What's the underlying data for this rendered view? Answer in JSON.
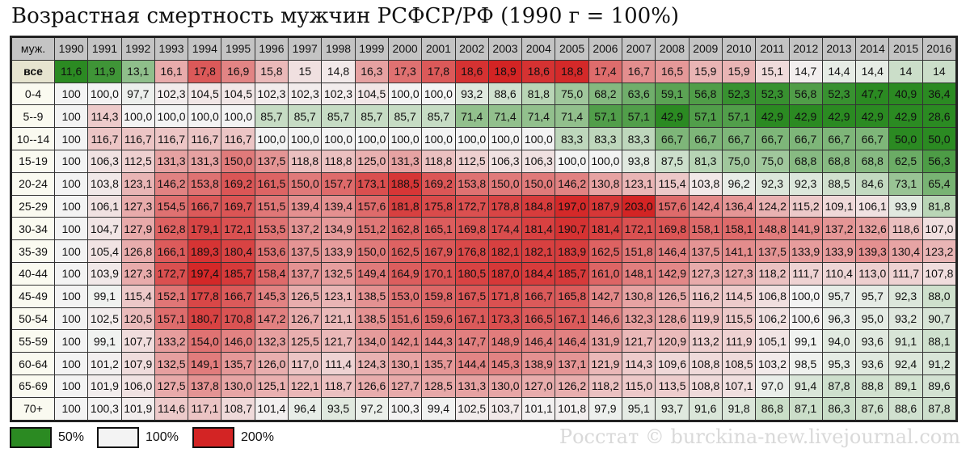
{
  "title": "Возрастная смертность мужчин РСФСР/РФ (1990 г = 100%)",
  "credit": "Росстат © burckina-new.livejournal.com",
  "legend": [
    {
      "label": "50%",
      "color": "#2b8a22"
    },
    {
      "label": "100%",
      "color": "#f3f3f3"
    },
    {
      "label": "200%",
      "color": "#d32424"
    }
  ],
  "chart_data": {
    "type": "heatmap",
    "title": "Возрастная смертность мужчин РСФСР/РФ (1990 г = 100%)",
    "corner_label": "муж.",
    "x": [
      "1990",
      "1991",
      "1992",
      "1993",
      "1994",
      "1995",
      "1996",
      "1997",
      "1998",
      "1999",
      "2000",
      "2001",
      "2002",
      "2003",
      "2004",
      "2005",
      "2006",
      "2007",
      "2008",
      "2009",
      "2010",
      "2011",
      "2012",
      "2013",
      "2014",
      "2015",
      "2016"
    ],
    "rows": [
      {
        "label": "все",
        "values": [
          "11,6",
          "11,9",
          "13,1",
          "16,1",
          "17,8",
          "16,9",
          "15,8",
          "15",
          "14,8",
          "16,3",
          "17,3",
          "17,8",
          "18,6",
          "18,9",
          "18,6",
          "18,8",
          "17,4",
          "16,7",
          "16,5",
          "15,9",
          "15,9",
          "15,1",
          "14,7",
          "14,4",
          "14,4",
          "14",
          "14"
        ]
      },
      {
        "label": "0-4",
        "values": [
          "100",
          "100,0",
          "97,7",
          "102,3",
          "104,5",
          "104,5",
          "102,3",
          "102,3",
          "102,3",
          "104,5",
          "100,0",
          "100,0",
          "93,2",
          "88,6",
          "81,8",
          "75,0",
          "68,2",
          "63,6",
          "59,1",
          "56,8",
          "52,3",
          "52,3",
          "56,8",
          "52,3",
          "47,7",
          "40,9",
          "36,4"
        ]
      },
      {
        "label": "5--9",
        "values": [
          "100",
          "114,3",
          "100,0",
          "100,0",
          "100,0",
          "100,0",
          "85,7",
          "85,7",
          "85,7",
          "85,7",
          "85,7",
          "85,7",
          "71,4",
          "71,4",
          "71,4",
          "71,4",
          "57,1",
          "57,1",
          "42,9",
          "57,1",
          "57,1",
          "42,9",
          "42,9",
          "42,9",
          "42,9",
          "42,9",
          "28,6"
        ]
      },
      {
        "label": "10--14",
        "values": [
          "100",
          "116,7",
          "116,7",
          "116,7",
          "116,7",
          "116,7",
          "100,0",
          "100,0",
          "100,0",
          "100,0",
          "100,0",
          "100,0",
          "100,0",
          "100,0",
          "100,0",
          "83,3",
          "83,3",
          "83,3",
          "66,7",
          "66,7",
          "66,7",
          "66,7",
          "66,7",
          "66,7",
          "66,7",
          "50,0",
          "50,0"
        ]
      },
      {
        "label": "15-19",
        "values": [
          "100",
          "106,3",
          "112,5",
          "131,3",
          "131,3",
          "150,0",
          "137,5",
          "118,8",
          "118,8",
          "125,0",
          "131,3",
          "118,8",
          "112,5",
          "106,3",
          "106,3",
          "100,0",
          "100,0",
          "93,8",
          "87,5",
          "81,3",
          "75,0",
          "75,0",
          "68,8",
          "68,8",
          "68,8",
          "62,5",
          "56,3"
        ]
      },
      {
        "label": "20-24",
        "values": [
          "100",
          "103,8",
          "123,1",
          "146,2",
          "153,8",
          "169,2",
          "161,5",
          "150,0",
          "157,7",
          "173,1",
          "188,5",
          "169,2",
          "153,8",
          "150,0",
          "150,0",
          "146,2",
          "130,8",
          "123,1",
          "115,4",
          "103,8",
          "96,2",
          "92,3",
          "92,3",
          "88,5",
          "84,6",
          "73,1",
          "65,4"
        ]
      },
      {
        "label": "25-29",
        "values": [
          "100",
          "106,1",
          "127,3",
          "154,5",
          "166,7",
          "169,7",
          "151,5",
          "139,4",
          "139,4",
          "157,6",
          "181,8",
          "175,8",
          "172,7",
          "178,8",
          "184,8",
          "197,0",
          "187,9",
          "203,0",
          "157,6",
          "142,4",
          "136,4",
          "124,2",
          "115,2",
          "109,1",
          "106,1",
          "93,9",
          "81,8"
        ]
      },
      {
        "label": "30-34",
        "values": [
          "100",
          "104,7",
          "127,9",
          "162,8",
          "179,1",
          "172,1",
          "153,5",
          "137,2",
          "134,9",
          "151,2",
          "162,8",
          "165,1",
          "169,8",
          "174,4",
          "181,4",
          "190,7",
          "181,4",
          "172,1",
          "169,8",
          "158,1",
          "158,1",
          "148,8",
          "141,9",
          "137,2",
          "132,6",
          "118,6",
          "107,0"
        ]
      },
      {
        "label": "35-39",
        "values": [
          "100",
          "105,4",
          "126,8",
          "166,1",
          "189,3",
          "180,4",
          "153,6",
          "137,5",
          "133,9",
          "150,0",
          "162,5",
          "167,9",
          "176,8",
          "182,1",
          "182,1",
          "183,9",
          "162,5",
          "151,8",
          "146,4",
          "137,5",
          "141,1",
          "137,5",
          "133,9",
          "133,9",
          "139,3",
          "130,4",
          "123,2"
        ]
      },
      {
        "label": "40-44",
        "values": [
          "100",
          "103,9",
          "127,3",
          "172,7",
          "197,4",
          "185,7",
          "158,4",
          "137,7",
          "132,5",
          "149,4",
          "164,9",
          "170,1",
          "180,5",
          "187,0",
          "184,4",
          "185,7",
          "161,0",
          "148,1",
          "142,9",
          "127,3",
          "127,3",
          "118,2",
          "111,7",
          "110,4",
          "113,0",
          "111,7",
          "107,8"
        ]
      },
      {
        "label": "45-49",
        "values": [
          "100",
          "99,1",
          "115,4",
          "152,1",
          "177,8",
          "166,7",
          "145,3",
          "126,5",
          "123,1",
          "138,5",
          "153,0",
          "159,8",
          "167,5",
          "171,8",
          "166,7",
          "165,8",
          "142,7",
          "130,8",
          "126,5",
          "116,2",
          "114,5",
          "106,8",
          "100,0",
          "95,7",
          "95,7",
          "92,3",
          "88,0"
        ]
      },
      {
        "label": "50-54",
        "values": [
          "100",
          "102,5",
          "120,5",
          "157,1",
          "180,7",
          "170,8",
          "147,2",
          "126,7",
          "121,1",
          "138,5",
          "151,6",
          "159,6",
          "167,1",
          "173,3",
          "166,5",
          "167,1",
          "146,6",
          "132,3",
          "128,6",
          "119,9",
          "115,5",
          "106,2",
          "100,6",
          "96,3",
          "95,0",
          "93,2",
          "90,7"
        ]
      },
      {
        "label": "55-59",
        "values": [
          "100",
          "99,1",
          "107,7",
          "133,2",
          "154,0",
          "146,0",
          "132,3",
          "125,5",
          "121,7",
          "134,0",
          "142,1",
          "144,3",
          "147,7",
          "148,9",
          "146,4",
          "146,4",
          "131,9",
          "121,7",
          "120,9",
          "113,2",
          "111,9",
          "105,1",
          "99,1",
          "94,0",
          "93,6",
          "91,1",
          "88,1"
        ]
      },
      {
        "label": "60-64",
        "values": [
          "100",
          "101,2",
          "107,9",
          "132,5",
          "149,1",
          "135,7",
          "126,0",
          "117,0",
          "111,4",
          "124,3",
          "130,1",
          "135,7",
          "144,4",
          "145,3",
          "138,9",
          "137,1",
          "121,9",
          "114,3",
          "109,6",
          "108,8",
          "108,5",
          "103,2",
          "98,5",
          "95,3",
          "93,6",
          "92,4",
          "91,2"
        ]
      },
      {
        "label": "65-69",
        "values": [
          "100",
          "101,9",
          "106,0",
          "127,5",
          "137,8",
          "130,0",
          "125,1",
          "122,1",
          "118,7",
          "126,6",
          "127,7",
          "128,5",
          "131,3",
          "130,0",
          "127,0",
          "126,2",
          "118,2",
          "115,0",
          "113,5",
          "108,8",
          "107,1",
          "97,0",
          "91,4",
          "87,8",
          "88,8",
          "89,1",
          "89,6"
        ]
      },
      {
        "label": "70+",
        "values": [
          "100",
          "100,3",
          "101,9",
          "114,6",
          "117,1",
          "108,7",
          "101,4",
          "96,4",
          "93,5",
          "97,2",
          "100,3",
          "99,4",
          "102,5",
          "103,7",
          "101,1",
          "101,8",
          "97,9",
          "95,1",
          "93,7",
          "91,6",
          "91,8",
          "86,8",
          "87,1",
          "86,3",
          "87,6",
          "88,6",
          "87,8"
        ]
      }
    ]
  }
}
